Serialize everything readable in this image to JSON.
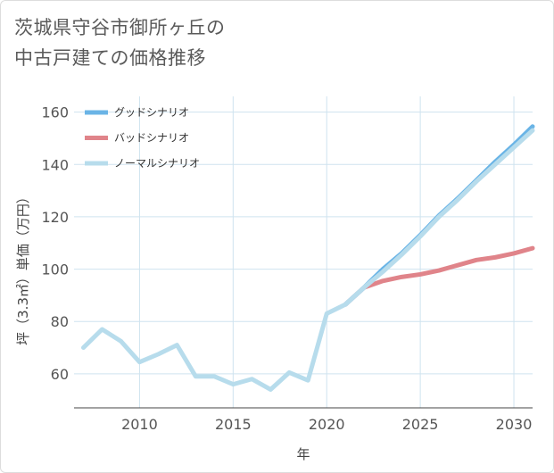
{
  "title_lines": [
    "茨城県守谷市御所ヶ丘の",
    "中古戸建ての価格推移"
  ],
  "chart_data": {
    "type": "line",
    "xlabel": "年",
    "ylabel": "坪（3.3㎡）単価（万円）",
    "xlim": [
      2006.5,
      2031
    ],
    "ylim": [
      47,
      166
    ],
    "x_ticks": [
      2010,
      2015,
      2020,
      2025,
      2030
    ],
    "y_ticks": [
      60,
      80,
      100,
      120,
      140,
      160
    ],
    "grid": true,
    "legend_position": "top-left",
    "series": [
      {
        "name": "グッドシナリオ",
        "color": "#6ab4e6",
        "x": [
          2021,
          2022,
          2023,
          2024,
          2025,
          2026,
          2027,
          2028,
          2029,
          2030,
          2031
        ],
        "values": [
          86.5,
          93,
          100,
          106,
          113,
          120.5,
          127,
          134,
          141,
          147.5,
          154.5
        ]
      },
      {
        "name": "バッドシナリオ",
        "color": "#e0848a",
        "x": [
          2021,
          2022,
          2023,
          2024,
          2025,
          2026,
          2027,
          2028,
          2029,
          2030,
          2031
        ],
        "values": [
          86.5,
          93,
          95.5,
          97,
          98,
          99.5,
          101.5,
          103.5,
          104.5,
          106,
          108
        ]
      },
      {
        "name": "ノーマルシナリオ",
        "color": "#b7dcec",
        "x": [
          2007,
          2008,
          2009,
          2010,
          2011,
          2012,
          2013,
          2014,
          2015,
          2016,
          2017,
          2018,
          2019,
          2020,
          2021,
          2022,
          2023,
          2024,
          2025,
          2026,
          2027,
          2028,
          2029,
          2030,
          2031
        ],
        "values": [
          70,
          77,
          72.5,
          64.5,
          67.5,
          71,
          59,
          59,
          56,
          58,
          54,
          60.5,
          57.5,
          83,
          86.5,
          93,
          99,
          105.5,
          112.5,
          120,
          126.5,
          133.5,
          140,
          146.5,
          153
        ]
      }
    ]
  }
}
